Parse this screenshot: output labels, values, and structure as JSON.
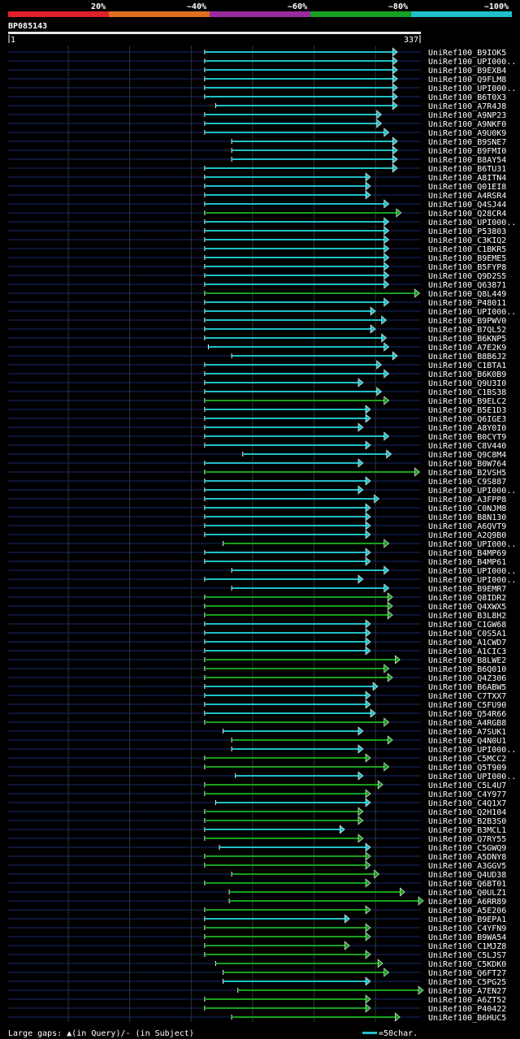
{
  "chart_data": {
    "type": "alignment-overview",
    "query": {
      "name": "BP085143",
      "start": 1,
      "end": 337
    },
    "identity_legend": [
      {
        "label": "20%",
        "color": "#e0202a"
      },
      {
        "label": "~40%",
        "color": "#e07020"
      },
      {
        "label": "~60%",
        "color": "#9a2aa0"
      },
      {
        "label": "~80%",
        "color": "#18a020"
      },
      {
        "label": "~100%",
        "color": "#20c0c8"
      }
    ],
    "footer": {
      "gaps_text": "Large gaps: ▲(in Query)/- (in Subject)",
      "scale_text": "=50char."
    },
    "hits": [
      {
        "name": "UniRef100_B9IOK5",
        "start": 161,
        "end": 318,
        "identity": "~100%"
      },
      {
        "name": "UniRef100_UPI000..",
        "start": 161,
        "end": 318,
        "identity": "~100%"
      },
      {
        "name": "UniRef100_B9EXB4",
        "start": 161,
        "end": 318,
        "identity": "~100%"
      },
      {
        "name": "UniRef100_Q9FLM8",
        "start": 161,
        "end": 318,
        "identity": "~100%"
      },
      {
        "name": "UniRef100_UPI000..",
        "start": 161,
        "end": 318,
        "identity": "~100%"
      },
      {
        "name": "UniRef100_B6T0X3",
        "start": 161,
        "end": 318,
        "identity": "~100%"
      },
      {
        "name": "UniRef100_A7R4J8",
        "start": 170,
        "end": 318,
        "identity": "~100%"
      },
      {
        "name": "UniRef100_A9NP23",
        "start": 161,
        "end": 305,
        "identity": "~100%"
      },
      {
        "name": "UniRef100_A9NKF0",
        "start": 161,
        "end": 305,
        "identity": "~100%"
      },
      {
        "name": "UniRef100_A9U0K9",
        "start": 161,
        "end": 311,
        "identity": "~100%"
      },
      {
        "name": "UniRef100_B9SNE7",
        "start": 183,
        "end": 318,
        "identity": "~100%"
      },
      {
        "name": "UniRef100_B9FMI0",
        "start": 183,
        "end": 318,
        "identity": "~100%"
      },
      {
        "name": "UniRef100_B8AY54",
        "start": 183,
        "end": 318,
        "identity": "~100%"
      },
      {
        "name": "UniRef100_B6TU31",
        "start": 161,
        "end": 318,
        "identity": "~100%"
      },
      {
        "name": "UniRef100_A8ITN4",
        "start": 161,
        "end": 296,
        "identity": "~100%"
      },
      {
        "name": "UniRef100_Q01EI8",
        "start": 161,
        "end": 296,
        "identity": "~100%"
      },
      {
        "name": "UniRef100_A4RSR4",
        "start": 161,
        "end": 296,
        "identity": "~100%"
      },
      {
        "name": "UniRef100_Q4SJ44",
        "start": 161,
        "end": 311,
        "identity": "~100%"
      },
      {
        "name": "UniRef100_Q28CR4",
        "start": 161,
        "end": 321,
        "identity": "~80%"
      },
      {
        "name": "UniRef100_UPI000..",
        "start": 161,
        "end": 311,
        "identity": "~100%"
      },
      {
        "name": "UniRef100_P53803",
        "start": 161,
        "end": 311,
        "identity": "~100%"
      },
      {
        "name": "UniRef100_C3KIQ2",
        "start": 161,
        "end": 311,
        "identity": "~100%"
      },
      {
        "name": "UniRef100_C1BKR5",
        "start": 161,
        "end": 311,
        "identity": "~100%"
      },
      {
        "name": "UniRef100_B9EME5",
        "start": 161,
        "end": 311,
        "identity": "~100%"
      },
      {
        "name": "UniRef100_B5FYP8",
        "start": 161,
        "end": 311,
        "identity": "~100%"
      },
      {
        "name": "UniRef100_Q9D2S5",
        "start": 161,
        "end": 311,
        "identity": "~100%"
      },
      {
        "name": "UniRef100_Q63871",
        "start": 161,
        "end": 311,
        "identity": "~100%"
      },
      {
        "name": "UniRef100_Q8L449",
        "start": 161,
        "end": 336,
        "identity": "~80%"
      },
      {
        "name": "UniRef100_P48011",
        "start": 161,
        "end": 311,
        "identity": "~100%"
      },
      {
        "name": "UniRef100_UPI000..",
        "start": 161,
        "end": 300,
        "identity": "~100%"
      },
      {
        "name": "UniRef100_B9PWV0",
        "start": 161,
        "end": 309,
        "identity": "~100%"
      },
      {
        "name": "UniRef100_B7QL52",
        "start": 161,
        "end": 300,
        "identity": "~100%"
      },
      {
        "name": "UniRef100_B6KNP5",
        "start": 161,
        "end": 309,
        "identity": "~100%"
      },
      {
        "name": "UniRef100_A7E2K9",
        "start": 164,
        "end": 311,
        "identity": "~100%"
      },
      {
        "name": "UniRef100_B8B6J2",
        "start": 183,
        "end": 318,
        "identity": "~100%"
      },
      {
        "name": "UniRef100_C1BTA1",
        "start": 161,
        "end": 305,
        "identity": "~100%"
      },
      {
        "name": "UniRef100_B6K0B9",
        "start": 161,
        "end": 311,
        "identity": "~100%"
      },
      {
        "name": "UniRef100_Q9U3I0",
        "start": 161,
        "end": 290,
        "identity": "~100%"
      },
      {
        "name": "UniRef100_C1BS38",
        "start": 161,
        "end": 305,
        "identity": "~100%"
      },
      {
        "name": "UniRef100_B9ELC2",
        "start": 161,
        "end": 311,
        "identity": "~80%"
      },
      {
        "name": "UniRef100_B5E1D3",
        "start": 161,
        "end": 296,
        "identity": "~100%"
      },
      {
        "name": "UniRef100_Q6IGE3",
        "start": 161,
        "end": 296,
        "identity": "~100%"
      },
      {
        "name": "UniRef100_A8Y0I0",
        "start": 161,
        "end": 290,
        "identity": "~100%"
      },
      {
        "name": "UniRef100_B0CYT9",
        "start": 161,
        "end": 311,
        "identity": "~100%"
      },
      {
        "name": "UniRef100_C8V440",
        "start": 161,
        "end": 296,
        "identity": "~100%"
      },
      {
        "name": "UniRef100_Q9C8M4",
        "start": 192,
        "end": 313,
        "identity": "~100%"
      },
      {
        "name": "UniRef100_B0W764",
        "start": 161,
        "end": 290,
        "identity": "~100%"
      },
      {
        "name": "UniRef100_B2VSH5",
        "start": 161,
        "end": 336,
        "identity": "~80%"
      },
      {
        "name": "UniRef100_C9S887",
        "start": 161,
        "end": 296,
        "identity": "~100%"
      },
      {
        "name": "UniRef100_UPI000..",
        "start": 161,
        "end": 290,
        "identity": "~100%"
      },
      {
        "name": "UniRef100_A3FPP8",
        "start": 161,
        "end": 303,
        "identity": "~100%"
      },
      {
        "name": "UniRef100_C0NJM8",
        "start": 161,
        "end": 296,
        "identity": "~100%"
      },
      {
        "name": "UniRef100_B8N130",
        "start": 161,
        "end": 296,
        "identity": "~100%"
      },
      {
        "name": "UniRef100_A6QVT9",
        "start": 161,
        "end": 296,
        "identity": "~100%"
      },
      {
        "name": "UniRef100_A2Q9B0",
        "start": 161,
        "end": 296,
        "identity": "~100%"
      },
      {
        "name": "UniRef100_UPI000..",
        "start": 176,
        "end": 311,
        "identity": "~80%"
      },
      {
        "name": "UniRef100_B4MP69",
        "start": 161,
        "end": 296,
        "identity": "~100%"
      },
      {
        "name": "UniRef100_B4MP61",
        "start": 161,
        "end": 296,
        "identity": "~100%"
      },
      {
        "name": "UniRef100_UPI000..",
        "start": 183,
        "end": 311,
        "identity": "~100%"
      },
      {
        "name": "UniRef100_UPI000..",
        "start": 161,
        "end": 290,
        "identity": "~100%"
      },
      {
        "name": "UniRef100_B9EMR7",
        "start": 183,
        "end": 311,
        "identity": "~100%"
      },
      {
        "name": "UniRef100_Q8IDR2",
        "start": 161,
        "end": 314,
        "identity": "~80%"
      },
      {
        "name": "UniRef100_Q4XWX5",
        "start": 161,
        "end": 314,
        "identity": "~80%"
      },
      {
        "name": "UniRef100_B3L8H2",
        "start": 161,
        "end": 314,
        "identity": "~80%"
      },
      {
        "name": "UniRef100_C1GW68",
        "start": 161,
        "end": 296,
        "identity": "~100%"
      },
      {
        "name": "UniRef100_C0S5A1",
        "start": 161,
        "end": 296,
        "identity": "~100%"
      },
      {
        "name": "UniRef100_A1CWD7",
        "start": 161,
        "end": 296,
        "identity": "~100%"
      },
      {
        "name": "UniRef100_A1CIC3",
        "start": 161,
        "end": 296,
        "identity": "~100%"
      },
      {
        "name": "UniRef100_B8LWE2",
        "start": 161,
        "end": 320,
        "identity": "~80%"
      },
      {
        "name": "UniRef100_B6Q010",
        "start": 161,
        "end": 311,
        "identity": "~80%"
      },
      {
        "name": "UniRef100_Q4Z306",
        "start": 161,
        "end": 314,
        "identity": "~80%"
      },
      {
        "name": "UniRef100_B6ABW5",
        "start": 161,
        "end": 302,
        "identity": "~100%"
      },
      {
        "name": "UniRef100_C7TXX7",
        "start": 161,
        "end": 296,
        "identity": "~100%"
      },
      {
        "name": "UniRef100_C5FU90",
        "start": 161,
        "end": 296,
        "identity": "~100%"
      },
      {
        "name": "UniRef100_Q54R66",
        "start": 161,
        "end": 300,
        "identity": "~100%"
      },
      {
        "name": "UniRef100_A4RGB8",
        "start": 161,
        "end": 311,
        "identity": "~80%"
      },
      {
        "name": "UniRef100_A7SUK1",
        "start": 176,
        "end": 290,
        "identity": "~100%"
      },
      {
        "name": "UniRef100_Q4N0U1",
        "start": 183,
        "end": 314,
        "identity": "~80%"
      },
      {
        "name": "UniRef100_UPI000..",
        "start": 183,
        "end": 290,
        "identity": "~100%"
      },
      {
        "name": "UniRef100_C5MCC2",
        "start": 161,
        "end": 296,
        "identity": "~80%"
      },
      {
        "name": "UniRef100_Q5T909",
        "start": 161,
        "end": 311,
        "identity": "~80%"
      },
      {
        "name": "UniRef100_UPI000..",
        "start": 186,
        "end": 290,
        "identity": "~100%"
      },
      {
        "name": "UniRef100_C5L4U7",
        "start": 161,
        "end": 306,
        "identity": "~80%"
      },
      {
        "name": "UniRef100_C4Y977",
        "start": 161,
        "end": 296,
        "identity": "~80%"
      },
      {
        "name": "UniRef100_C4Q1X7",
        "start": 170,
        "end": 296,
        "identity": "~100%"
      },
      {
        "name": "UniRef100_Q2H104",
        "start": 161,
        "end": 290,
        "identity": "~80%"
      },
      {
        "name": "UniRef100_B2B3S0",
        "start": 161,
        "end": 290,
        "identity": "~80%"
      },
      {
        "name": "UniRef100_B3MCL1",
        "start": 161,
        "end": 275,
        "identity": "~100%"
      },
      {
        "name": "UniRef100_Q7RY55",
        "start": 161,
        "end": 290,
        "identity": "~80%"
      },
      {
        "name": "UniRef100_C5GWQ9",
        "start": 173,
        "end": 296,
        "identity": "~100%"
      },
      {
        "name": "UniRef100_A5DNY8",
        "start": 161,
        "end": 296,
        "identity": "~80%"
      },
      {
        "name": "UniRef100_A3GGV5",
        "start": 161,
        "end": 296,
        "identity": "~80%"
      },
      {
        "name": "UniRef100_Q4UD38",
        "start": 183,
        "end": 303,
        "identity": "~80%"
      },
      {
        "name": "UniRef100_Q6BT01",
        "start": 161,
        "end": 296,
        "identity": "~80%"
      },
      {
        "name": "UniRef100_Q0ULZ1",
        "start": 181,
        "end": 324,
        "identity": "~80%"
      },
      {
        "name": "UniRef100_A6RR89",
        "start": 181,
        "end": 339,
        "identity": "~80%"
      },
      {
        "name": "UniRef100_A5E206",
        "start": 161,
        "end": 296,
        "identity": "~80%"
      },
      {
        "name": "UniRef100_B9EPA1",
        "start": 161,
        "end": 279,
        "identity": "~100%"
      },
      {
        "name": "UniRef100_C4YFN9",
        "start": 161,
        "end": 296,
        "identity": "~80%"
      },
      {
        "name": "UniRef100_B9WA54",
        "start": 161,
        "end": 296,
        "identity": "~80%"
      },
      {
        "name": "UniRef100_C1MJZ8",
        "start": 161,
        "end": 279,
        "identity": "~80%"
      },
      {
        "name": "UniRef100_C5LJS7",
        "start": 161,
        "end": 296,
        "identity": "~80%"
      },
      {
        "name": "UniRef100_C5KDK0",
        "start": 170,
        "end": 306,
        "identity": "~80%"
      },
      {
        "name": "UniRef100_Q6FT27",
        "start": 176,
        "end": 311,
        "identity": "~80%"
      },
      {
        "name": "UniRef100_C5PG25",
        "start": 176,
        "end": 296,
        "identity": "~100%"
      },
      {
        "name": "UniRef100_A7EN27",
        "start": 188,
        "end": 339,
        "identity": "~80%"
      },
      {
        "name": "UniRef100_A6ZT52",
        "start": 161,
        "end": 296,
        "identity": "~80%"
      },
      {
        "name": "UniRef100_P40422",
        "start": 161,
        "end": 296,
        "identity": "~80%"
      },
      {
        "name": "UniRef100_B6HUC5",
        "start": 183,
        "end": 320,
        "identity": "~80%"
      }
    ]
  }
}
